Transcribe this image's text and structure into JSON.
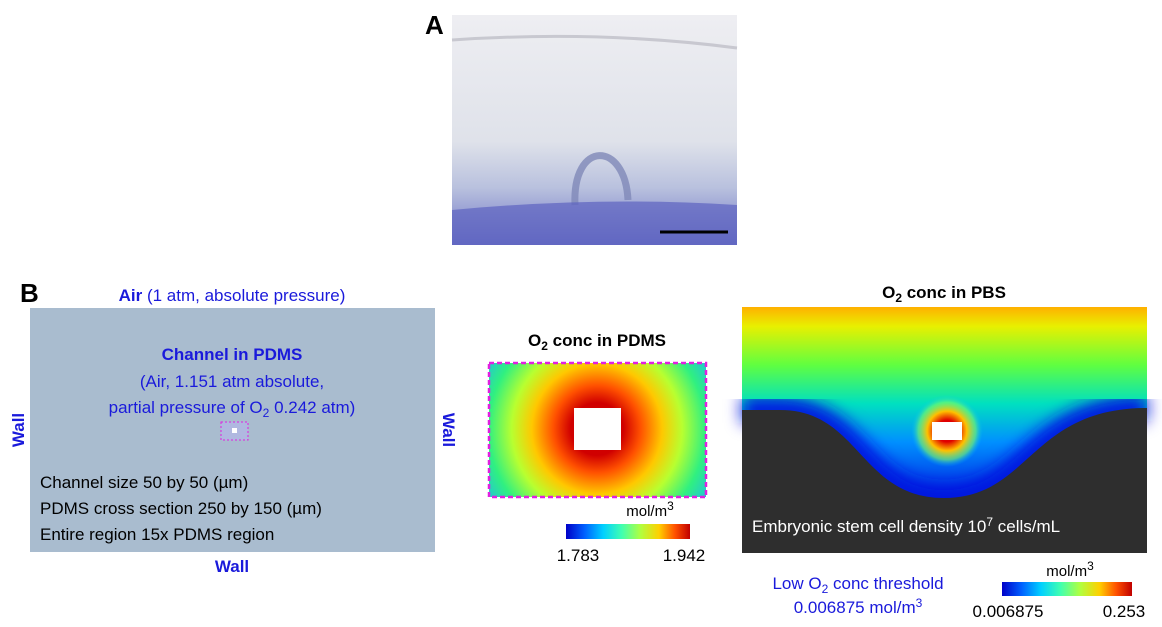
{
  "panel_a": {
    "label": "A"
  },
  "panel_b": {
    "label": "B",
    "domain": {
      "air_label": "Air",
      "air_note": " (1 atm, absolute pressure)",
      "channel_title": "Channel in PDMS",
      "channel_line1": "(Air, 1.151 atm absolute,",
      "channel_line2": [
        "partial pressure of O",
        "2",
        " 0.242 atm)"
      ],
      "notes": [
        "Channel size 50 by 50 (µm)",
        "PDMS cross section 250 by 150 (µm)",
        "Entire region 15x PDMS region"
      ],
      "wall_left": "Wall",
      "wall_right": "Wall",
      "wall_bottom": "Wall"
    },
    "pdms_plot": {
      "title": [
        "O",
        "2",
        " conc in PDMS"
      ],
      "unit": [
        "mol/m",
        "3"
      ],
      "min": 1.783,
      "max": 1.942
    },
    "pbs_plot": {
      "title": [
        "O",
        "2",
        " conc in PBS"
      ],
      "caption": [
        "Embryonic stem cell density 10",
        "7",
        " cells/mL"
      ],
      "unit": [
        "mol/m",
        "3"
      ],
      "min": 0.006875,
      "max": 0.253,
      "threshold": {
        "line1": [
          "Low O",
          "2",
          " conc threshold"
        ],
        "line2": [
          "0.006875 mol/m",
          "3"
        ]
      }
    }
  }
}
